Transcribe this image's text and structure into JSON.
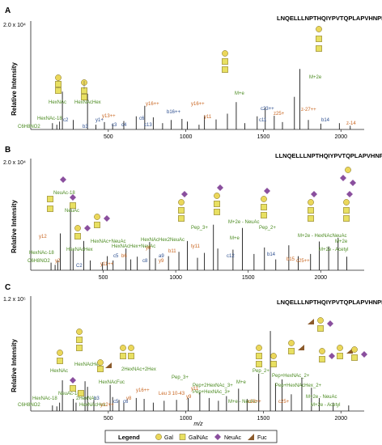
{
  "panels": [
    {
      "letter": "A",
      "ymax_label": "2.0 x 10⁴",
      "ylabel": "Relative Intensity",
      "xticks": [
        "500",
        "1000",
        "1500",
        "2000"
      ],
      "sequence": "LNQELLLNPTHQIYPVTQPLAPVHNPISV",
      "green_labels": [
        "HexNAc",
        "HexNAcHex",
        "HexNAc-18",
        "C6H8NO2",
        "M+2e",
        "M+e",
        "M+2e"
      ],
      "orange_labels": [
        "y13++",
        "y16++",
        "y16++",
        "y11",
        "z25+",
        "z-14",
        "z-27++"
      ],
      "blue_labels": [
        "c2",
        "b3",
        "c3",
        "c4",
        "y1+",
        "c6",
        "b16++",
        "c11",
        "c23++",
        "b14",
        "c13"
      ]
    },
    {
      "letter": "B",
      "ymax_label": "2.0 x 10⁴",
      "ylabel": "Relative Intensity",
      "xticks": [
        "500",
        "1000",
        "1500",
        "2000"
      ],
      "sequence": "LLNQELLLNPTHQIYPVTQPLAPVHNPISV",
      "green_labels": [
        "NeuAc-18",
        "NeuAc",
        "HexNAc-18",
        "C6H8NO2",
        "HexNAcHex",
        "HexNAc+NeuAc",
        "HexNAcHex+NeuAc",
        "HexNAcHex2NeuAc",
        "Pep_3+",
        "M+e",
        "Pep_2+",
        "M+2e - NeuAc",
        "M+2e - HexNAcNeuAc",
        "M+2e - Acetyl",
        "M+2e"
      ],
      "orange_labels": [
        "y12",
        "y2",
        "y11++",
        "b6",
        "y8",
        "y9",
        "b11",
        "ty11",
        "b15",
        "c25++"
      ],
      "blue_labels": [
        "C2",
        "c5",
        "c8",
        "a9",
        "c12",
        "b14"
      ]
    },
    {
      "letter": "C",
      "ymax_label": "1.2 x 10⁵",
      "ylabel": "Relative Intensity",
      "xlabel": "m/z",
      "xticks": [
        "500",
        "1000",
        "1500",
        "2000"
      ],
      "sequence": "LNQELLLNPTHQIYPVTQPLAPVHNPISV",
      "green_labels": [
        "HexNAc",
        "HexNAcHex",
        "HexNAcFuc",
        "2HexNAc+2Hex",
        "NeuAc-18",
        "2HexNAc",
        "HexNAcHex",
        "C6H8NO2",
        "HexNAc-18",
        "Pep_3+",
        "Pep_2+",
        "Pep+HexNAc_2+",
        "Pep+HexNAc_3+",
        "Pep+2HexNAc_3+",
        "Pep+HexNAcHex_2+",
        "M+e",
        "M+e - NeuAc",
        "M+2e - NeuAc",
        "M+2e - Acetyl"
      ],
      "orange_labels": [
        "y12++",
        "y16++",
        "y8",
        "y11",
        "Leu 3 10-43",
        "c25+",
        "c18++",
        "y9"
      ],
      "blue_labels": [
        "b3",
        "c5",
        "c6"
      ]
    }
  ],
  "legend": {
    "title": "Legend",
    "items": [
      {
        "name": "Gal",
        "shape": "circle",
        "color": "#ebd75a"
      },
      {
        "name": "GalNAc",
        "shape": "square",
        "color": "#e8e062"
      },
      {
        "name": "NeuAc",
        "shape": "diamond",
        "color": "#8a4f9e"
      },
      {
        "name": "Fuc",
        "shape": "triangle",
        "color": "#8b5a2b"
      }
    ]
  },
  "chart_data": [
    {
      "type": "bar",
      "panel": "A",
      "xlabel": "",
      "ylabel": "Relative Intensity",
      "xlim": [
        0,
        2150
      ],
      "ylim": [
        0,
        20000
      ],
      "xticks": [
        500,
        1000,
        1500,
        2000
      ],
      "peaks": [
        {
          "mz": 140,
          "y": 1200
        },
        {
          "mz": 168,
          "y": 900
        },
        {
          "mz": 186,
          "y": 1500
        },
        {
          "mz": 204,
          "y": 7200
        },
        {
          "mz": 274,
          "y": 1800
        },
        {
          "mz": 366,
          "y": 6800
        },
        {
          "mz": 420,
          "y": 900
        },
        {
          "mz": 475,
          "y": 1400
        },
        {
          "mz": 528,
          "y": 1000
        },
        {
          "mz": 600,
          "y": 1600
        },
        {
          "mz": 680,
          "y": 2500
        },
        {
          "mz": 735,
          "y": 4500
        },
        {
          "mz": 790,
          "y": 2300
        },
        {
          "mz": 850,
          "y": 1200
        },
        {
          "mz": 905,
          "y": 1800
        },
        {
          "mz": 975,
          "y": 2000
        },
        {
          "mz": 1010,
          "y": 1500
        },
        {
          "mz": 1085,
          "y": 900
        },
        {
          "mz": 1120,
          "y": 2700
        },
        {
          "mz": 1195,
          "y": 1900
        },
        {
          "mz": 1268,
          "y": 3000
        },
        {
          "mz": 1325,
          "y": 5200
        },
        {
          "mz": 1380,
          "y": 1200
        },
        {
          "mz": 1460,
          "y": 2500
        },
        {
          "mz": 1512,
          "y": 4200
        },
        {
          "mz": 1570,
          "y": 2600
        },
        {
          "mz": 1623,
          "y": 1400
        },
        {
          "mz": 1700,
          "y": 6200
        },
        {
          "mz": 1735,
          "y": 11500
        },
        {
          "mz": 1790,
          "y": 1800
        },
        {
          "mz": 1870,
          "y": 1100
        },
        {
          "mz": 1990,
          "y": 1200
        },
        {
          "mz": 2060,
          "y": 700
        }
      ]
    },
    {
      "type": "bar",
      "panel": "B",
      "xlabel": "",
      "ylabel": "Relative Intensity",
      "xlim": [
        0,
        2300
      ],
      "ylim": [
        0,
        20000
      ],
      "xticks": [
        500,
        1000,
        1500,
        2000
      ],
      "peaks": [
        {
          "mz": 140,
          "y": 1400
        },
        {
          "mz": 168,
          "y": 1000
        },
        {
          "mz": 186,
          "y": 1800
        },
        {
          "mz": 204,
          "y": 6800
        },
        {
          "mz": 274,
          "y": 12200
        },
        {
          "mz": 292,
          "y": 3800
        },
        {
          "mz": 366,
          "y": 5400
        },
        {
          "mz": 410,
          "y": 1800
        },
        {
          "mz": 495,
          "y": 1500
        },
        {
          "mz": 528,
          "y": 2600
        },
        {
          "mz": 568,
          "y": 1800
        },
        {
          "mz": 657,
          "y": 4000
        },
        {
          "mz": 690,
          "y": 2000
        },
        {
          "mz": 735,
          "y": 2500
        },
        {
          "mz": 820,
          "y": 5200
        },
        {
          "mz": 860,
          "y": 2200
        },
        {
          "mz": 950,
          "y": 2600
        },
        {
          "mz": 1022,
          "y": 3400
        },
        {
          "mz": 1080,
          "y": 5400
        },
        {
          "mz": 1150,
          "y": 2300
        },
        {
          "mz": 1198,
          "y": 3200
        },
        {
          "mz": 1260,
          "y": 8400
        },
        {
          "mz": 1290,
          "y": 4000
        },
        {
          "mz": 1395,
          "y": 3800
        },
        {
          "mz": 1460,
          "y": 7800
        },
        {
          "mz": 1540,
          "y": 3000
        },
        {
          "mz": 1612,
          "y": 4200
        },
        {
          "mz": 1690,
          "y": 2000
        },
        {
          "mz": 1780,
          "y": 4600
        },
        {
          "mz": 1845,
          "y": 2600
        },
        {
          "mz": 1930,
          "y": 3000
        },
        {
          "mz": 1990,
          "y": 5300
        },
        {
          "mz": 2055,
          "y": 4400
        },
        {
          "mz": 2120,
          "y": 6000
        },
        {
          "mz": 2180,
          "y": 2500
        }
      ]
    },
    {
      "type": "bar",
      "panel": "C",
      "xlabel": "m/z",
      "ylabel": "Relative Intensity",
      "xlim": [
        0,
        2150
      ],
      "ylim": [
        0,
        120000
      ],
      "xticks": [
        500,
        1000,
        1500,
        2000
      ],
      "peaks": [
        {
          "mz": 140,
          "y": 6000
        },
        {
          "mz": 168,
          "y": 5000
        },
        {
          "mz": 186,
          "y": 9000
        },
        {
          "mz": 204,
          "y": 33000
        },
        {
          "mz": 274,
          "y": 13000
        },
        {
          "mz": 292,
          "y": 9000
        },
        {
          "mz": 350,
          "y": 32000
        },
        {
          "mz": 366,
          "y": 26000
        },
        {
          "mz": 407,
          "y": 12000
        },
        {
          "mz": 512,
          "y": 28000
        },
        {
          "mz": 528,
          "y": 15000
        },
        {
          "mz": 569,
          "y": 12000
        },
        {
          "mz": 600,
          "y": 9000
        },
        {
          "mz": 680,
          "y": 14000
        },
        {
          "mz": 731,
          "y": 13000
        },
        {
          "mz": 790,
          "y": 9000
        },
        {
          "mz": 860,
          "y": 11000
        },
        {
          "mz": 940,
          "y": 12000
        },
        {
          "mz": 1015,
          "y": 14000
        },
        {
          "mz": 1090,
          "y": 20000
        },
        {
          "mz": 1150,
          "y": 14000
        },
        {
          "mz": 1210,
          "y": 11000
        },
        {
          "mz": 1262,
          "y": 16000
        },
        {
          "mz": 1340,
          "y": 24000
        },
        {
          "mz": 1395,
          "y": 13000
        },
        {
          "mz": 1470,
          "y": 40000
        },
        {
          "mz": 1545,
          "y": 86000
        },
        {
          "mz": 1578,
          "y": 30000
        },
        {
          "mz": 1620,
          "y": 34000
        },
        {
          "mz": 1680,
          "y": 18000
        },
        {
          "mz": 1748,
          "y": 36000
        },
        {
          "mz": 1810,
          "y": 25000
        },
        {
          "mz": 1860,
          "y": 14000
        },
        {
          "mz": 1950,
          "y": 9000
        },
        {
          "mz": 2050,
          "y": 6000
        }
      ]
    }
  ]
}
